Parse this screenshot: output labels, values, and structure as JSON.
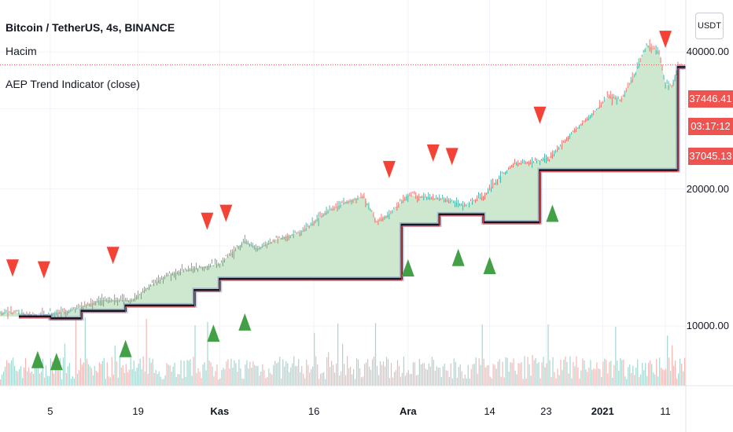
{
  "header": {
    "symbol_title": "Bitcoin / TetherUS, 4s, BINANCE",
    "indicator_1": "Hacim",
    "indicator_2": "AEP Trend Indicator (close)",
    "currency_button": "USDT"
  },
  "price_labels": {
    "high": "37446.41",
    "countdown": "03:17:12",
    "last": "37045.13"
  },
  "colors": {
    "up": "#26a69a",
    "down": "#ef5350",
    "fill": "#c8e6c9",
    "trend_line": "#131722",
    "buy_marker": "#43a047",
    "sell_marker": "#f44336"
  },
  "chart_data": {
    "type": "line",
    "title": "Bitcoin / TetherUS, 4s, BINANCE",
    "x_tick_labels": [
      "5",
      "19",
      "Kas",
      "16",
      "Ara",
      "14",
      "23",
      "2021",
      "11"
    ],
    "y_tick_labels": [
      "10000.00",
      "20000.00",
      "40000.00"
    ],
    "y_scale": "log",
    "ylim": [
      7400,
      52000
    ],
    "grid": true,
    "price": {
      "name": "close",
      "x": [
        "2020-09-30",
        "2020-10-03",
        "2020-10-08",
        "2020-10-13",
        "2020-10-18",
        "2020-10-21",
        "2020-10-24",
        "2020-10-28",
        "2020-11-01",
        "2020-11-05",
        "2020-11-07",
        "2020-11-10",
        "2020-11-14",
        "2020-11-18",
        "2020-11-21",
        "2020-11-24",
        "2020-11-26",
        "2020-11-28",
        "2020-12-01",
        "2020-12-04",
        "2020-12-07",
        "2020-12-10",
        "2020-12-13",
        "2020-12-16",
        "2020-12-18",
        "2020-12-21",
        "2020-12-24",
        "2020-12-27",
        "2020-12-30",
        "2021-01-02",
        "2021-01-04",
        "2021-01-06",
        "2021-01-08",
        "2021-01-10",
        "2021-01-11",
        "2021-01-12",
        "2021-01-13"
      ],
      "y": [
        10700,
        10550,
        10800,
        11400,
        11400,
        12300,
        13000,
        13400,
        13700,
        15400,
        14800,
        15500,
        16100,
        17800,
        18700,
        19300,
        17000,
        17600,
        19400,
        19200,
        19000,
        18400,
        19300,
        21500,
        22800,
        22900,
        23700,
        26500,
        28900,
        32000,
        31500,
        35500,
        41500,
        40000,
        34000,
        33500,
        37045
      ]
    },
    "aep_trend_line": {
      "name": "AEP Trend Indicator (close)",
      "x": [
        "2020-09-30",
        "2020-10-05",
        "2020-10-10",
        "2020-10-17",
        "2020-10-28",
        "2020-11-01",
        "2020-11-30",
        "2020-12-06",
        "2020-12-13",
        "2020-12-22",
        "2021-01-12",
        "2021-01-13"
      ],
      "y": [
        10500,
        10400,
        10800,
        11100,
        12000,
        12700,
        16700,
        17600,
        16900,
        22000,
        22000,
        37045
      ]
    },
    "buy_signals": [
      "2020-10-03",
      "2020-10-06",
      "2020-10-17",
      "2020-10-31",
      "2020-11-05",
      "2020-12-01",
      "2020-12-09",
      "2020-12-14",
      "2020-12-24"
    ],
    "sell_signals": [
      "2020-09-29",
      "2020-10-04",
      "2020-10-15",
      "2020-10-30",
      "2020-11-02",
      "2020-11-28",
      "2020-12-05",
      "2020-12-08",
      "2020-12-22",
      "2021-01-11"
    ]
  }
}
